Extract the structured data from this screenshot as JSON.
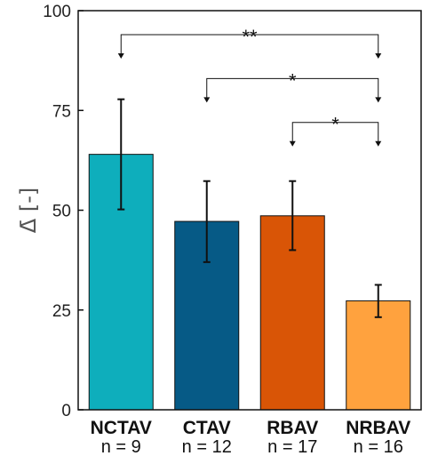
{
  "chart_data": {
    "type": "bar",
    "categories": [
      "NCTAV",
      "CTAV",
      "RBAV",
      "NRBAV"
    ],
    "sample_sizes": [
      "n = 9",
      "n = 12",
      "n = 17",
      "n = 16"
    ],
    "values": [
      64,
      47.2,
      48.6,
      27.3
    ],
    "error_low": [
      50.2,
      37,
      40,
      23.2
    ],
    "error_high": [
      77.8,
      57.3,
      57.3,
      31.3
    ],
    "colors": [
      "#0eaebc",
      "#065a86",
      "#d95506",
      "#ffa23e"
    ],
    "ylabel": "Δ̄ [-]",
    "ylim": [
      0,
      100
    ],
    "yticks": [
      0,
      25,
      50,
      75,
      100
    ],
    "significance": [
      {
        "from": "NCTAV",
        "to": "NRBAV",
        "label": "**",
        "level": 94
      },
      {
        "from": "CTAV",
        "to": "NRBAV",
        "label": "*",
        "level": 83
      },
      {
        "from": "RBAV",
        "to": "NRBAV",
        "label": "*",
        "level": 72
      }
    ],
    "grid": false,
    "legend": "none"
  }
}
